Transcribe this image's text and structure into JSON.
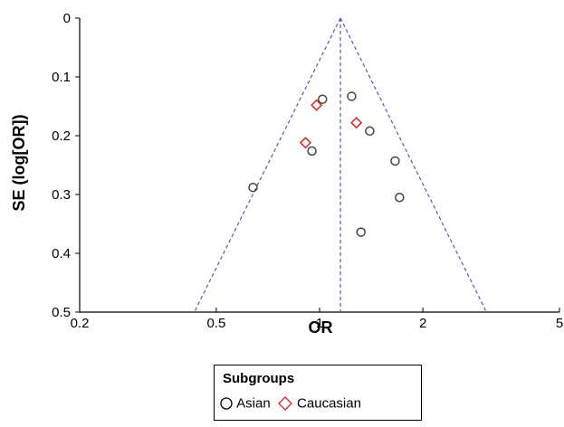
{
  "chart_data": {
    "type": "scatter",
    "xlabel": "OR",
    "ylabel": "SE (log[OR])",
    "x_scale": "log",
    "xlim": [
      0.2,
      5
    ],
    "ylim": [
      0,
      0.5
    ],
    "y_inverted": true,
    "x_ticks": [
      0.2,
      0.5,
      1,
      2,
      5
    ],
    "x_tick_labels": [
      "0.2",
      "0.5",
      "1",
      "2",
      "5"
    ],
    "y_ticks": [
      0,
      0.1,
      0.2,
      0.3,
      0.4,
      0.5
    ],
    "y_tick_labels": [
      "0",
      "0.1",
      "0.2",
      "0.3",
      "0.4",
      "0.5"
    ],
    "pooled_or": 1.15,
    "funnel_ci": "95% pseudo confidence limits (dashed blue)",
    "grid": false,
    "legend": {
      "title": "Subgroups",
      "placement": "bottom-center",
      "entries": [
        "Asian",
        "Caucasian"
      ]
    },
    "series": [
      {
        "name": "Asian",
        "marker": "circle",
        "color": "#444444",
        "points": [
          {
            "x": 1.02,
            "y": 0.138
          },
          {
            "x": 1.24,
            "y": 0.133
          },
          {
            "x": 1.4,
            "y": 0.192
          },
          {
            "x": 0.95,
            "y": 0.226
          },
          {
            "x": 1.66,
            "y": 0.243
          },
          {
            "x": 0.64,
            "y": 0.288
          },
          {
            "x": 1.71,
            "y": 0.305
          },
          {
            "x": 1.32,
            "y": 0.364
          }
        ]
      },
      {
        "name": "Caucasian",
        "marker": "diamond",
        "color": "#d62728",
        "points": [
          {
            "x": 0.98,
            "y": 0.148
          },
          {
            "x": 1.28,
            "y": 0.178
          },
          {
            "x": 0.91,
            "y": 0.212
          }
        ]
      }
    ]
  },
  "colors": {
    "funnel": "#5555cc",
    "asian_marker": "#444444",
    "caucasian_marker": "#d62728",
    "axis": "#000000"
  }
}
